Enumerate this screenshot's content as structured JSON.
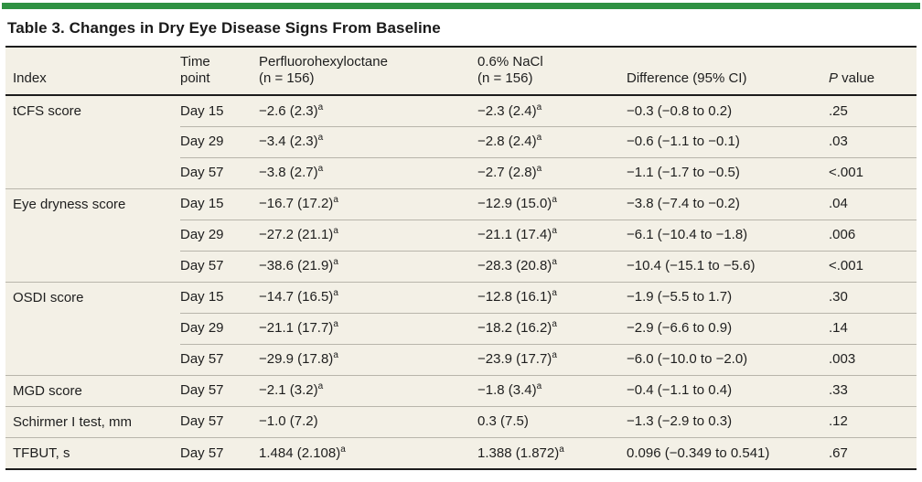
{
  "colors": {
    "accent_green": "#2f9142",
    "table_background": "#f3f0e6",
    "rule_dark": "#1c1c1c",
    "rule_light": "#b8b5ab"
  },
  "title": "Table 3. Changes in Dry Eye Disease Signs From Baseline",
  "table": {
    "headers": {
      "index": "Index",
      "time_line1": "Time",
      "time_line2": "point",
      "drug1_line1": "Perfluorohexyloctane",
      "drug1_line2": "(n = 156)",
      "drug2_line1": "0.6% NaCl",
      "drug2_line2": "(n = 156)",
      "difference": "Difference (95% CI)",
      "p_italic": "P",
      "p_rest": " value"
    },
    "rows": [
      {
        "index": "tCFS score",
        "rowspan": 3,
        "group_start": true,
        "time": "Day 15",
        "pfh": "−2.6 (2.3)",
        "pfh_sup": "a",
        "nacl": "−2.3 (2.4)",
        "nacl_sup": "a",
        "diff": "−0.3 (−0.8 to 0.2)",
        "p": ".25"
      },
      {
        "time": "Day 29",
        "pfh": "−3.4 (2.3)",
        "pfh_sup": "a",
        "nacl": "−2.8 (2.4)",
        "nacl_sup": "a",
        "diff": "−0.6 (−1.1 to −0.1)",
        "p": ".03"
      },
      {
        "time": "Day 57",
        "pfh": "−3.8 (2.7)",
        "pfh_sup": "a",
        "nacl": "−2.7 (2.8)",
        "nacl_sup": "a",
        "diff": "−1.1 (−1.7 to −0.5)",
        "p": "<.001"
      },
      {
        "index": "Eye dryness score",
        "rowspan": 3,
        "group_start": true,
        "time": "Day 15",
        "pfh": "−16.7 (17.2)",
        "pfh_sup": "a",
        "nacl": "−12.9 (15.0)",
        "nacl_sup": "a",
        "diff": "−3.8 (−7.4 to −0.2)",
        "p": ".04"
      },
      {
        "time": "Day 29",
        "pfh": "−27.2 (21.1)",
        "pfh_sup": "a",
        "nacl": "−21.1 (17.4)",
        "nacl_sup": "a",
        "diff": "−6.1 (−10.4 to −1.8)",
        "p": ".006"
      },
      {
        "time": "Day 57",
        "pfh": "−38.6 (21.9)",
        "pfh_sup": "a",
        "nacl": "−28.3 (20.8)",
        "nacl_sup": "a",
        "diff": "−10.4 (−15.1 to −5.6)",
        "p": "<.001"
      },
      {
        "index": "OSDI score",
        "rowspan": 3,
        "group_start": true,
        "time": "Day 15",
        "pfh": "−14.7 (16.5)",
        "pfh_sup": "a",
        "nacl": "−12.8 (16.1)",
        "nacl_sup": "a",
        "diff": "−1.9 (−5.5 to 1.7)",
        "p": ".30"
      },
      {
        "time": "Day 29",
        "pfh": "−21.1 (17.7)",
        "pfh_sup": "a",
        "nacl": "−18.2 (16.2)",
        "nacl_sup": "a",
        "diff": "−2.9 (−6.6 to 0.9)",
        "p": ".14"
      },
      {
        "time": "Day 57",
        "pfh": "−29.9 (17.8)",
        "pfh_sup": "a",
        "nacl": "−23.9 (17.7)",
        "nacl_sup": "a",
        "diff": "−6.0 (−10.0 to −2.0)",
        "p": ".003"
      },
      {
        "index": "MGD score",
        "rowspan": 1,
        "group_start": true,
        "time": "Day 57",
        "pfh": "−2.1 (3.2)",
        "pfh_sup": "a",
        "nacl": "−1.8 (3.4)",
        "nacl_sup": "a",
        "diff": "−0.4 (−1.1 to 0.4)",
        "p": ".33"
      },
      {
        "index": "Schirmer I test, mm",
        "rowspan": 1,
        "group_start": true,
        "time": "Day 57",
        "pfh": "−1.0 (7.2)",
        "nacl": "0.3 (7.5)",
        "diff": "−1.3 (−2.9 to 0.3)",
        "p": ".12"
      },
      {
        "index": "TFBUT, s",
        "rowspan": 1,
        "group_start": true,
        "time": "Day 57",
        "pfh": "1.484 (2.108)",
        "pfh_sup": "a",
        "nacl": "1.388 (1.872)",
        "nacl_sup": "a",
        "diff": "0.096 (−0.349 to 0.541)",
        "p": ".67"
      }
    ]
  }
}
